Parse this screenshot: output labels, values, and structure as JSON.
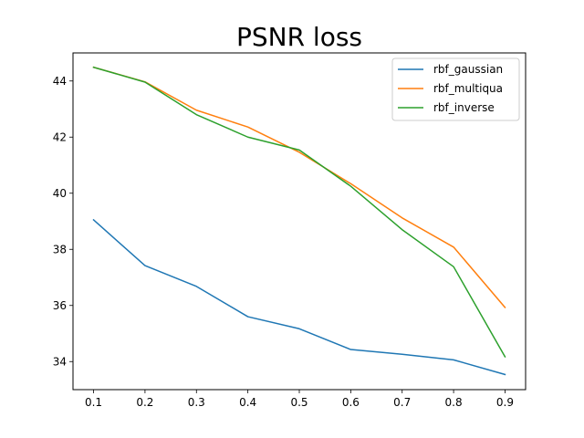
{
  "chart_data": {
    "type": "line",
    "title": "PSNR loss",
    "xlabel": "",
    "ylabel": "",
    "x": [
      0.1,
      0.2,
      0.3,
      0.4,
      0.5,
      0.6,
      0.7,
      0.8,
      0.9
    ],
    "xticks": [
      "0.1",
      "0.2",
      "0.3",
      "0.4",
      "0.5",
      "0.6",
      "0.7",
      "0.8",
      "0.9"
    ],
    "yticks": [
      "34",
      "36",
      "38",
      "40",
      "42",
      "44"
    ],
    "xlim": [
      0.06,
      0.94
    ],
    "ylim": [
      33.0,
      45.0
    ],
    "legend_position": "top-right",
    "grid": false,
    "series": [
      {
        "name": "rbf_gaussian",
        "color": "#1f77b4",
        "values": [
          39.05,
          37.42,
          36.68,
          35.6,
          35.17,
          34.43,
          34.26,
          34.06,
          33.54
        ]
      },
      {
        "name": "rbf_multiqua",
        "color": "#ff7f0e",
        "values": [
          44.49,
          43.97,
          42.96,
          42.36,
          41.46,
          40.34,
          39.12,
          38.08,
          35.93
        ]
      },
      {
        "name": "rbf_inverse",
        "color": "#2ca02c",
        "values": [
          44.49,
          43.96,
          42.8,
          42.0,
          41.54,
          40.25,
          38.7,
          37.38,
          34.17
        ]
      }
    ]
  }
}
